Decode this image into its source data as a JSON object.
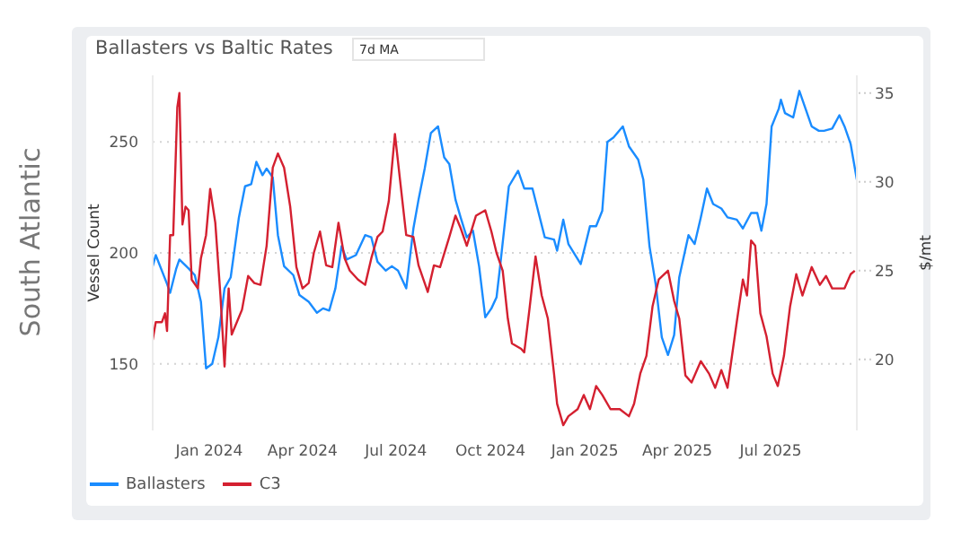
{
  "chart_data": {
    "type": "line",
    "title": "Ballasters vs Baltic Rates",
    "ylabel": "Vessel Count",
    "y2label": "$/mt",
    "annotations": [
      "South Atlantic",
      "7d MA"
    ],
    "xlim": [
      "2023-11-07",
      "2025-09-23"
    ],
    "xticks": [
      {
        "value": "2024-01-01",
        "label": "Jan 2024"
      },
      {
        "value": "2024-04-01",
        "label": "Apr 2024"
      },
      {
        "value": "2024-07-01",
        "label": "Jul 2024"
      },
      {
        "value": "2024-10-01",
        "label": "Oct 2024"
      },
      {
        "value": "2025-01-01",
        "label": "Jan 2025"
      },
      {
        "value": "2025-04-01",
        "label": "Apr 2025"
      },
      {
        "value": "2025-07-01",
        "label": "Jul 2025"
      }
    ],
    "ylim": [
      120,
      280
    ],
    "yticks": [
      150,
      200,
      250
    ],
    "y2lim": [
      16,
      36
    ],
    "y2ticks": [
      20,
      25,
      30,
      35
    ],
    "grid": "y",
    "legend": "bottom left",
    "marker": "none",
    "line_style": "solid",
    "series": [
      {
        "name": "Ballasters",
        "color": "#1a8cff",
        "x": [
          "2023-11-07",
          "2023-11-10",
          "2023-11-21",
          "2023-11-24",
          "2023-11-30",
          "2023-12-03",
          "2023-12-12",
          "2023-12-18",
          "2023-12-24",
          "2023-12-29",
          "2024-01-04",
          "2024-01-10",
          "2024-01-16",
          "2024-01-22",
          "2024-01-30",
          "2024-02-05",
          "2024-02-11",
          "2024-02-16",
          "2024-02-22",
          "2024-02-26",
          "2024-03-03",
          "2024-03-08",
          "2024-03-14",
          "2024-03-23",
          "2024-03-29",
          "2024-04-07",
          "2024-04-15",
          "2024-04-21",
          "2024-04-27",
          "2024-05-03",
          "2024-05-09",
          "2024-05-14",
          "2024-05-23",
          "2024-06-01",
          "2024-06-07",
          "2024-06-13",
          "2024-06-21",
          "2024-06-27",
          "2024-07-03",
          "2024-07-11",
          "2024-07-18",
          "2024-07-23",
          "2024-07-29",
          "2024-08-04",
          "2024-08-11",
          "2024-08-17",
          "2024-08-22",
          "2024-08-28",
          "2024-09-02",
          "2024-09-08",
          "2024-09-14",
          "2024-09-20",
          "2024-09-26",
          "2024-10-02",
          "2024-10-07",
          "2024-10-10",
          "2024-10-19",
          "2024-10-28",
          "2024-11-03",
          "2024-11-11",
          "2024-11-23",
          "2024-12-02",
          "2024-12-05",
          "2024-12-11",
          "2024-12-16",
          "2024-12-28",
          "2025-01-06",
          "2025-01-12",
          "2025-01-18",
          "2025-01-23",
          "2025-01-29",
          "2025-02-07",
          "2025-02-13",
          "2025-02-22",
          "2025-02-27",
          "2025-03-05",
          "2025-03-11",
          "2025-03-17",
          "2025-03-23",
          "2025-03-29",
          "2025-04-03",
          "2025-04-12",
          "2025-04-18",
          "2025-04-24",
          "2025-04-30",
          "2025-05-06",
          "2025-05-14",
          "2025-05-20",
          "2025-05-29",
          "2025-06-04",
          "2025-06-12",
          "2025-06-18",
          "2025-06-22",
          "2025-06-27",
          "2025-07-02",
          "2025-07-09",
          "2025-07-11",
          "2025-07-15",
          "2025-07-23",
          "2025-07-29",
          "2025-08-10",
          "2025-08-17",
          "2025-08-22",
          "2025-08-30",
          "2025-09-06",
          "2025-09-11",
          "2025-09-17",
          "2025-09-23"
        ],
        "values": [
          194,
          199,
          186,
          182,
          193,
          197,
          193,
          190,
          178,
          148,
          150,
          162,
          184,
          189,
          216,
          230,
          231,
          241,
          235,
          238,
          234,
          208,
          194,
          190,
          181,
          178,
          173,
          175,
          174,
          184,
          203,
          197,
          199,
          208,
          207,
          196,
          192,
          194,
          192,
          184,
          211,
          224,
          238,
          254,
          257,
          243,
          240,
          224,
          216,
          207,
          210,
          194,
          171,
          175,
          180,
          192,
          230,
          237,
          229,
          229,
          207,
          206,
          201,
          215,
          204,
          195,
          212,
          212,
          219,
          250,
          252,
          257,
          248,
          242,
          233,
          203,
          186,
          162,
          154,
          163,
          189,
          208,
          204,
          216,
          229,
          222,
          220,
          216,
          215,
          211,
          218,
          218,
          210,
          222,
          257,
          265,
          269,
          263,
          261,
          273,
          257,
          255,
          255,
          256,
          262,
          257,
          249,
          233
        ]
      },
      {
        "name": "C3",
        "color": "#d42030",
        "axis": "y2",
        "x": [
          "2023-11-07",
          "2023-11-10",
          "2023-11-16",
          "2023-11-19",
          "2023-11-21",
          "2023-11-24",
          "2023-11-27",
          "2023-12-01",
          "2023-12-03",
          "2023-12-06",
          "2023-12-09",
          "2023-12-12",
          "2023-12-15",
          "2023-12-21",
          "2023-12-24",
          "2023-12-29",
          "2024-01-02",
          "2024-01-07",
          "2024-01-12",
          "2024-01-16",
          "2024-01-20",
          "2024-01-23",
          "2024-01-28",
          "2024-02-02",
          "2024-02-08",
          "2024-02-14",
          "2024-02-20",
          "2024-02-26",
          "2024-03-03",
          "2024-03-08",
          "2024-03-14",
          "2024-03-20",
          "2024-03-26",
          "2024-04-01",
          "2024-04-07",
          "2024-04-12",
          "2024-04-18",
          "2024-04-24",
          "2024-04-30",
          "2024-05-06",
          "2024-05-12",
          "2024-05-17",
          "2024-05-25",
          "2024-06-01",
          "2024-06-07",
          "2024-06-13",
          "2024-06-18",
          "2024-06-24",
          "2024-06-30",
          "2024-07-05",
          "2024-07-11",
          "2024-07-18",
          "2024-07-23",
          "2024-08-01",
          "2024-08-07",
          "2024-08-13",
          "2024-08-22",
          "2024-08-28",
          "2024-09-02",
          "2024-09-08",
          "2024-09-17",
          "2024-09-26",
          "2024-10-02",
          "2024-10-07",
          "2024-10-13",
          "2024-10-18",
          "2024-10-22",
          "2024-10-31",
          "2024-11-03",
          "2024-11-08",
          "2024-11-14",
          "2024-11-20",
          "2024-11-26",
          "2024-12-02",
          "2024-12-05",
          "2024-12-11",
          "2024-12-16",
          "2024-12-25",
          "2024-12-31",
          "2025-01-06",
          "2025-01-12",
          "2025-01-18",
          "2025-01-26",
          "2025-02-04",
          "2025-02-13",
          "2025-02-18",
          "2025-02-24",
          "2025-03-02",
          "2025-03-08",
          "2025-03-14",
          "2025-03-23",
          "2025-03-29",
          "2025-04-03",
          "2025-04-09",
          "2025-04-15",
          "2025-04-24",
          "2025-05-02",
          "2025-05-08",
          "2025-05-14",
          "2025-05-20",
          "2025-05-29",
          "2025-06-04",
          "2025-06-08",
          "2025-06-12",
          "2025-06-16",
          "2025-06-21",
          "2025-06-27",
          "2025-07-03",
          "2025-07-08",
          "2025-07-14",
          "2025-07-20",
          "2025-07-26",
          "2025-08-01",
          "2025-08-10",
          "2025-08-18",
          "2025-08-24",
          "2025-08-30",
          "2025-09-11",
          "2025-09-17",
          "2025-09-21"
        ],
        "values": [
          21.1,
          22.1,
          22.1,
          22.6,
          21.6,
          27.0,
          27.0,
          34.2,
          35.0,
          27.6,
          28.6,
          28.4,
          24.5,
          24.0,
          25.7,
          27.0,
          29.6,
          27.7,
          23.6,
          19.6,
          24.0,
          21.4,
          22.1,
          22.8,
          24.7,
          24.3,
          24.2,
          26.4,
          30.8,
          31.6,
          30.8,
          28.6,
          25.2,
          24.0,
          24.3,
          26.0,
          27.2,
          25.3,
          25.2,
          27.7,
          25.7,
          25.0,
          24.5,
          24.2,
          25.7,
          26.9,
          27.2,
          28.9,
          32.7,
          30.1,
          27.0,
          26.9,
          25.3,
          23.8,
          25.3,
          25.2,
          26.9,
          28.1,
          27.4,
          26.4,
          28.1,
          28.4,
          27.2,
          26.0,
          25.0,
          22.3,
          20.9,
          20.6,
          20.4,
          22.8,
          25.8,
          23.6,
          22.3,
          19.2,
          17.5,
          16.3,
          16.8,
          17.2,
          18.0,
          17.2,
          18.5,
          18.0,
          17.2,
          17.2,
          16.8,
          17.5,
          19.2,
          20.2,
          23.0,
          24.5,
          25.0,
          23.3,
          22.3,
          19.1,
          18.7,
          19.9,
          19.2,
          18.4,
          19.4,
          18.4,
          22.1,
          24.5,
          23.6,
          26.7,
          26.4,
          22.6,
          21.3,
          19.2,
          18.5,
          20.2,
          23.0,
          24.8,
          23.6,
          25.2,
          24.2,
          24.7,
          24.0,
          24.0,
          24.8,
          25.0
        ]
      }
    ]
  }
}
